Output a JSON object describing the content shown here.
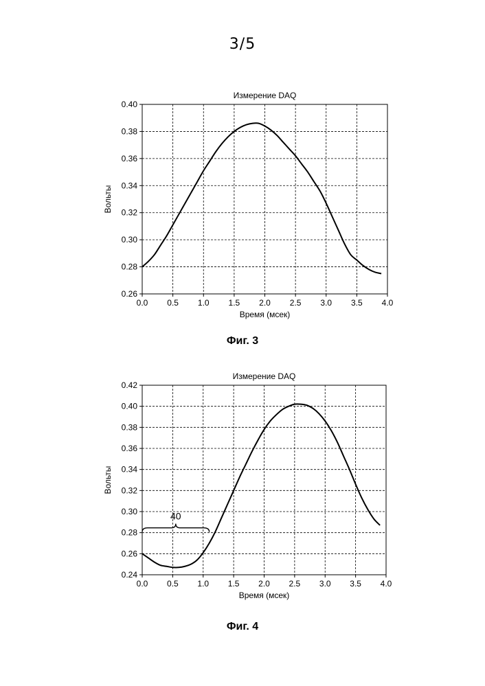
{
  "page": {
    "number": "3/5"
  },
  "chart_data": [
    {
      "type": "line",
      "title": "Измерение DAQ",
      "xlabel": "Время (мсек)",
      "ylabel": "Вольты",
      "caption": "Фиг. 3",
      "xlim": [
        0.0,
        4.0
      ],
      "ylim": [
        0.26,
        0.4
      ],
      "xticks": [
        "0.0",
        "0.5",
        "1.0",
        "1.5",
        "2.0",
        "2.5",
        "3.0",
        "3.5",
        "4.0"
      ],
      "yticks": [
        "0.26",
        "0.28",
        "0.30",
        "0.32",
        "0.34",
        "0.36",
        "0.38",
        "0.40"
      ],
      "grid": true,
      "series": [
        {
          "x": [
            0.0,
            0.1,
            0.2,
            0.3,
            0.4,
            0.5,
            0.6,
            0.7,
            0.8,
            0.9,
            1.0,
            1.1,
            1.2,
            1.3,
            1.4,
            1.5,
            1.6,
            1.7,
            1.8,
            1.9,
            2.0,
            2.1,
            2.2,
            2.3,
            2.4,
            2.5,
            2.6,
            2.7,
            2.8,
            2.9,
            3.0,
            3.1,
            3.2,
            3.3,
            3.4,
            3.5,
            3.6,
            3.7,
            3.8,
            3.9
          ],
          "y": [
            0.28,
            0.284,
            0.289,
            0.296,
            0.303,
            0.311,
            0.319,
            0.327,
            0.335,
            0.343,
            0.351,
            0.358,
            0.365,
            0.371,
            0.376,
            0.38,
            0.383,
            0.385,
            0.386,
            0.386,
            0.384,
            0.381,
            0.377,
            0.372,
            0.367,
            0.362,
            0.356,
            0.35,
            0.343,
            0.336,
            0.327,
            0.317,
            0.307,
            0.297,
            0.289,
            0.285,
            0.281,
            0.278,
            0.276,
            0.275
          ]
        }
      ]
    },
    {
      "type": "line",
      "title": "Измерение DAQ",
      "xlabel": "Время (мсек)",
      "ylabel": "Вольты",
      "caption": "Фиг. 4",
      "xlim": [
        0.0,
        4.0
      ],
      "ylim": [
        0.24,
        0.42
      ],
      "xticks": [
        "0.0",
        "0.5",
        "1.0",
        "1.5",
        "2.0",
        "2.5",
        "3.0",
        "3.5",
        "4.0"
      ],
      "yticks": [
        "0.24",
        "0.26",
        "0.28",
        "0.30",
        "0.32",
        "0.34",
        "0.36",
        "0.38",
        "0.40",
        "0.42"
      ],
      "grid": true,
      "annotations": [
        {
          "text": "40",
          "x_from": 0.0,
          "x_to": 1.1,
          "y": 0.28
        }
      ],
      "series": [
        {
          "x": [
            0.0,
            0.1,
            0.2,
            0.3,
            0.4,
            0.5,
            0.6,
            0.7,
            0.8,
            0.9,
            1.0,
            1.1,
            1.2,
            1.3,
            1.4,
            1.5,
            1.6,
            1.7,
            1.8,
            1.9,
            2.0,
            2.1,
            2.2,
            2.3,
            2.4,
            2.5,
            2.6,
            2.7,
            2.8,
            2.9,
            3.0,
            3.1,
            3.2,
            3.3,
            3.4,
            3.5,
            3.6,
            3.7,
            3.8,
            3.9
          ],
          "y": [
            0.26,
            0.256,
            0.252,
            0.249,
            0.248,
            0.247,
            0.247,
            0.248,
            0.25,
            0.254,
            0.261,
            0.27,
            0.281,
            0.294,
            0.307,
            0.32,
            0.333,
            0.345,
            0.357,
            0.368,
            0.378,
            0.386,
            0.392,
            0.397,
            0.4,
            0.402,
            0.402,
            0.401,
            0.398,
            0.393,
            0.386,
            0.377,
            0.366,
            0.353,
            0.34,
            0.326,
            0.313,
            0.302,
            0.293,
            0.287
          ]
        }
      ]
    }
  ]
}
